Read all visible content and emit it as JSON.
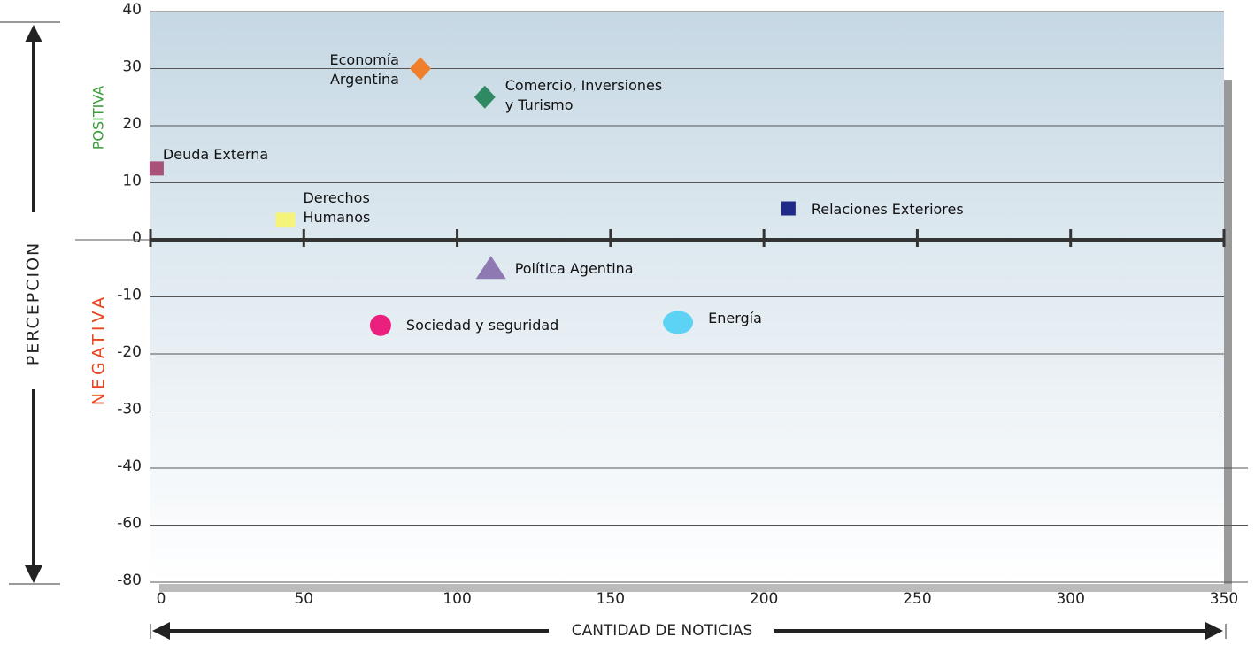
{
  "chart_data": {
    "type": "scatter",
    "xlabel": "CANTIDAD DE NOTICIAS",
    "ylabel": "PERCEPCION",
    "annotations": [
      "POSITIVA",
      "NEGATIVA"
    ],
    "xlim": [
      0,
      350
    ],
    "xticks": [
      0,
      50,
      100,
      150,
      200,
      250,
      300,
      350
    ],
    "ylim": [
      -80,
      40
    ],
    "yticks": [
      40,
      30,
      20,
      10,
      0,
      -10,
      -20,
      -30,
      -40,
      -60,
      -80
    ],
    "grid": true,
    "series": [
      {
        "name": "Deuda Externa",
        "color": "#a8527a",
        "marker": "square",
        "x": [
          2
        ],
        "values": [
          12.5
        ]
      },
      {
        "name": "Economía\nArgentina",
        "color": "#f07f2c",
        "marker": "diamond",
        "x": [
          88
        ],
        "values": [
          30
        ]
      },
      {
        "name": "Comercio, Inversiones\ny Turismo",
        "color": "#2f8a64",
        "marker": "diamond",
        "x": [
          109
        ],
        "values": [
          25
        ]
      },
      {
        "name": "Derechos\nHumanos",
        "color": "#f4f47a",
        "marker": "rect",
        "x": [
          44
        ],
        "values": [
          3.5
        ]
      },
      {
        "name": "Relaciones Exteriores",
        "color": "#1f2a8a",
        "marker": "square",
        "x": [
          208
        ],
        "values": [
          5.5
        ]
      },
      {
        "name": "Política Agentina",
        "color": "#8f79b3",
        "marker": "triangle",
        "x": [
          111
        ],
        "values": [
          -5
        ]
      },
      {
        "name": "Sociedad y seguridad",
        "color": "#ea1f7e",
        "marker": "circle",
        "x": [
          75
        ],
        "values": [
          -15
        ]
      },
      {
        "name": "Energía",
        "color": "#5cd2f5",
        "marker": "ellipse",
        "x": [
          172
        ],
        "values": [
          -14.5
        ]
      }
    ]
  }
}
